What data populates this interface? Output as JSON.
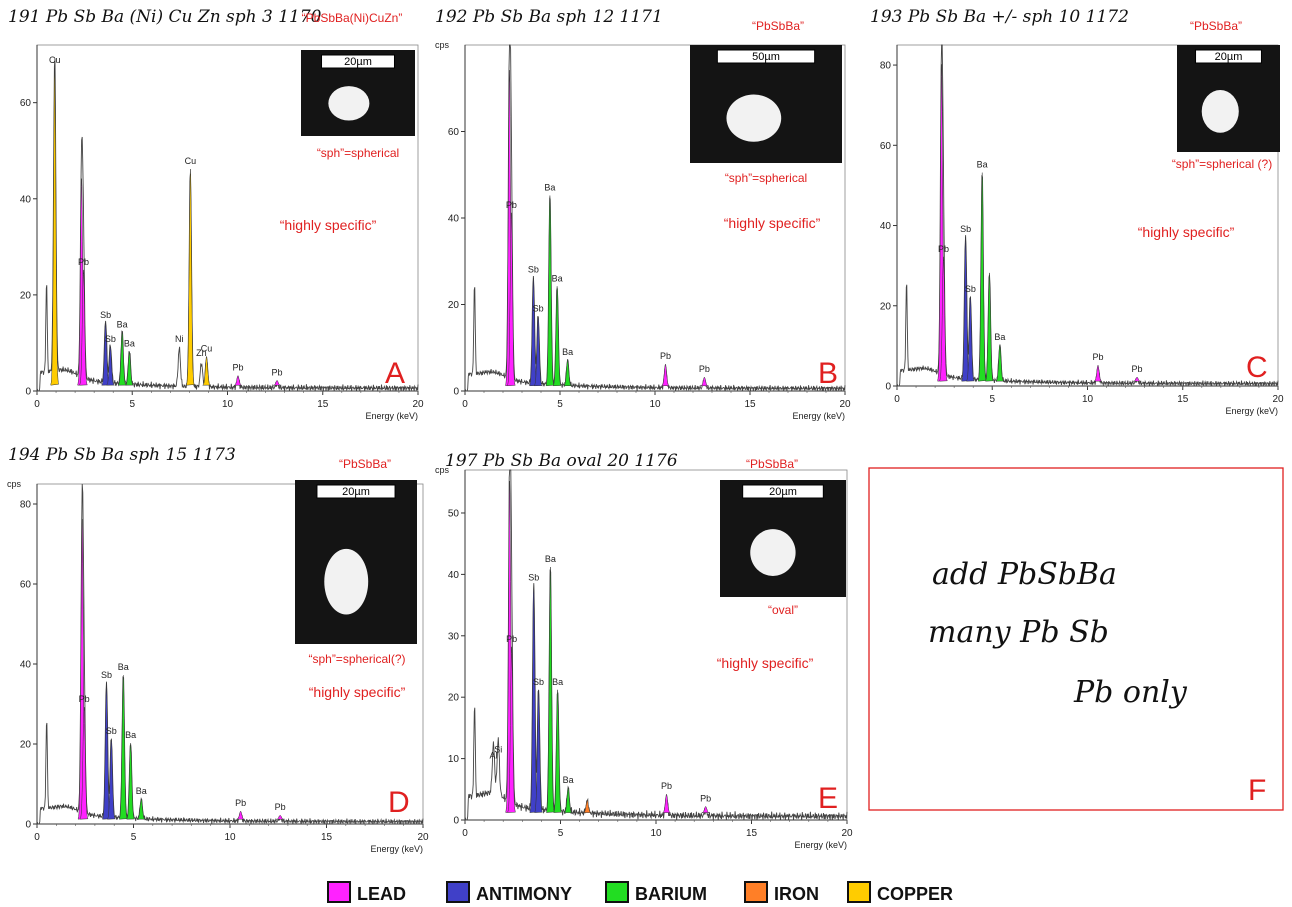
{
  "legend": {
    "items": [
      {
        "label": "LEAD",
        "color": "#ff22ff"
      },
      {
        "label": "ANTIMONY",
        "color": "#4040c8"
      },
      {
        "label": "BARIUM",
        "color": "#22dd22"
      },
      {
        "label": "IRON",
        "color": "#ff7f27"
      },
      {
        "label": "COPPER",
        "color": "#ffcc00"
      }
    ]
  },
  "panel_f": {
    "letter": "F",
    "lines": [
      "add PbSbBa",
      "many Pb Sb",
      "Pb only"
    ]
  },
  "chart_data": [
    {
      "type": "area",
      "letter": "A",
      "handwritten_note": "191 Pb Sb Ba (Ni) Cu Zn sph 3  1170",
      "composition": "“PbSbBa(Ni)CuZn”",
      "scalebar": "20µm",
      "shape_note": "“sph”=spherical",
      "specificity": "“highly specific”",
      "xlabel": "Energy (keV)",
      "ylabel": "",
      "xlim": [
        0,
        20
      ],
      "ylim": [
        0,
        72
      ],
      "xticks": [
        0,
        5,
        10,
        15,
        20
      ],
      "yticks": [
        0,
        20,
        40,
        60
      ],
      "peaks": [
        {
          "x": 0.93,
          "y": 66,
          "label": "Cu",
          "element": "copper"
        },
        {
          "x": 2.34,
          "y": 43,
          "label": "",
          "element": "lead"
        },
        {
          "x": 2.44,
          "y": 24,
          "label": "Pb",
          "element": "lead"
        },
        {
          "x": 3.6,
          "y": 13,
          "label": "Sb",
          "element": "antimony"
        },
        {
          "x": 3.85,
          "y": 8,
          "label": "Sb",
          "element": "antimony"
        },
        {
          "x": 4.47,
          "y": 11,
          "label": "Ba",
          "element": "barium"
        },
        {
          "x": 4.85,
          "y": 7,
          "label": "Ba",
          "element": "barium"
        },
        {
          "x": 7.47,
          "y": 8,
          "label": "Ni",
          "element": "none"
        },
        {
          "x": 8.05,
          "y": 45,
          "label": "Cu",
          "element": "copper"
        },
        {
          "x": 8.63,
          "y": 5,
          "label": "Zn",
          "element": "none"
        },
        {
          "x": 8.9,
          "y": 6,
          "label": "Cu",
          "element": "copper"
        },
        {
          "x": 10.55,
          "y": 2,
          "label": "Pb",
          "element": "lead"
        },
        {
          "x": 12.6,
          "y": 1,
          "label": "Pb",
          "element": "lead"
        }
      ]
    },
    {
      "type": "area",
      "letter": "B",
      "handwritten_note": "192 Pb Sb Ba sph 12  1171",
      "composition": "“PbSbBa”",
      "scalebar": "50µm",
      "shape_note": "“sph”=spherical",
      "specificity": "“highly specific”",
      "xlabel": "Energy (keV)",
      "ylabel": "cps",
      "xlim": [
        0,
        20
      ],
      "ylim": [
        0,
        80
      ],
      "xticks": [
        0,
        5,
        10,
        15,
        20
      ],
      "yticks": [
        0,
        20,
        40,
        60
      ],
      "peaks": [
        {
          "x": 2.34,
          "y": 73,
          "label": "",
          "element": "lead"
        },
        {
          "x": 2.44,
          "y": 40,
          "label": "Pb",
          "element": "lead"
        },
        {
          "x": 3.6,
          "y": 25,
          "label": "Sb",
          "element": "antimony"
        },
        {
          "x": 3.85,
          "y": 16,
          "label": "Sb",
          "element": "antimony"
        },
        {
          "x": 4.47,
          "y": 44,
          "label": "Ba",
          "element": "barium"
        },
        {
          "x": 4.85,
          "y": 23,
          "label": "Ba",
          "element": "barium"
        },
        {
          "x": 5.4,
          "y": 6,
          "label": "Ba",
          "element": "barium"
        },
        {
          "x": 10.55,
          "y": 5,
          "label": "Pb",
          "element": "lead"
        },
        {
          "x": 12.6,
          "y": 2,
          "label": "Pb",
          "element": "lead"
        }
      ]
    },
    {
      "type": "area",
      "letter": "C",
      "handwritten_note": "193 Pb Sb Ba +/- sph 10  1172",
      "composition": "“PbSbBa”",
      "scalebar": "20µm",
      "shape_note": "“sph”=spherical (?)",
      "specificity": "“highly specific”",
      "xlabel": "Energy (keV)",
      "ylabel": "",
      "xlim": [
        0,
        20
      ],
      "ylim": [
        0,
        85
      ],
      "xticks": [
        0,
        5,
        10,
        15,
        20
      ],
      "yticks": [
        0,
        20,
        40,
        60,
        80
      ],
      "peaks": [
        {
          "x": 2.34,
          "y": 79,
          "label": "",
          "element": "lead"
        },
        {
          "x": 2.44,
          "y": 31,
          "label": "Pb",
          "element": "lead"
        },
        {
          "x": 3.6,
          "y": 36,
          "label": "Sb",
          "element": "antimony"
        },
        {
          "x": 3.85,
          "y": 21,
          "label": "Sb",
          "element": "antimony"
        },
        {
          "x": 4.47,
          "y": 52,
          "label": "Ba",
          "element": "barium"
        },
        {
          "x": 4.85,
          "y": 27,
          "label": "",
          "element": "barium"
        },
        {
          "x": 5.4,
          "y": 9,
          "label": "Ba",
          "element": "barium"
        },
        {
          "x": 10.55,
          "y": 4,
          "label": "Pb",
          "element": "lead"
        },
        {
          "x": 12.6,
          "y": 1,
          "label": "Pb",
          "element": "lead"
        }
      ]
    },
    {
      "type": "area",
      "letter": "D",
      "handwritten_note": "194 Pb Sb Ba sph 15  1173",
      "composition": "“PbSbBa”",
      "scalebar": "20µm",
      "shape_note": "“sph”=spherical(?)",
      "specificity": "“highly specific”",
      "xlabel": "Energy (keV)",
      "ylabel": "cps",
      "xlim": [
        0,
        20
      ],
      "ylim": [
        0,
        85
      ],
      "xticks": [
        0,
        5,
        10,
        15,
        20
      ],
      "yticks": [
        0,
        20,
        40,
        60,
        80
      ],
      "peaks": [
        {
          "x": 2.34,
          "y": 75,
          "label": "",
          "element": "lead"
        },
        {
          "x": 2.44,
          "y": 28,
          "label": "Pb",
          "element": "lead"
        },
        {
          "x": 3.6,
          "y": 34,
          "label": "Sb",
          "element": "antimony"
        },
        {
          "x": 3.85,
          "y": 20,
          "label": "Sb",
          "element": "antimony"
        },
        {
          "x": 4.47,
          "y": 36,
          "label": "Ba",
          "element": "barium"
        },
        {
          "x": 4.85,
          "y": 19,
          "label": "Ba",
          "element": "barium"
        },
        {
          "x": 5.4,
          "y": 5,
          "label": "Ba",
          "element": "barium"
        },
        {
          "x": 10.55,
          "y": 2,
          "label": "Pb",
          "element": "lead"
        },
        {
          "x": 12.6,
          "y": 1,
          "label": "Pb",
          "element": "lead"
        }
      ]
    },
    {
      "type": "area",
      "letter": "E",
      "handwritten_note": "197 Pb Sb Ba oval 20  1176",
      "composition": "“PbSbBa”",
      "scalebar": "20µm",
      "shape_note": "“oval”",
      "specificity": "“highly specific”",
      "xlabel": "Energy (keV)",
      "ylabel": "cps",
      "xlim": [
        0,
        20
      ],
      "ylim": [
        0,
        57
      ],
      "xticks": [
        0,
        5,
        10,
        15,
        20
      ],
      "yticks": [
        0,
        10,
        20,
        30,
        40,
        50
      ],
      "peaks": [
        {
          "x": 1.49,
          "y": 8,
          "label": "Al",
          "element": "none"
        },
        {
          "x": 1.74,
          "y": 9,
          "label": "Si",
          "element": "none"
        },
        {
          "x": 2.34,
          "y": 54,
          "label": "",
          "element": "lead"
        },
        {
          "x": 2.44,
          "y": 27,
          "label": "Pb",
          "element": "lead"
        },
        {
          "x": 3.6,
          "y": 37,
          "label": "Sb",
          "element": "antimony"
        },
        {
          "x": 3.85,
          "y": 20,
          "label": "Sb",
          "element": "antimony"
        },
        {
          "x": 4.47,
          "y": 40,
          "label": "Ba",
          "element": "barium"
        },
        {
          "x": 4.85,
          "y": 20,
          "label": "Ba",
          "element": "barium"
        },
        {
          "x": 5.4,
          "y": 4,
          "label": "Ba",
          "element": "barium"
        },
        {
          "x": 6.4,
          "y": 2,
          "label": "",
          "element": "iron"
        },
        {
          "x": 10.55,
          "y": 3,
          "label": "Pb",
          "element": "lead"
        },
        {
          "x": 12.6,
          "y": 1,
          "label": "Pb",
          "element": "lead"
        }
      ]
    }
  ]
}
